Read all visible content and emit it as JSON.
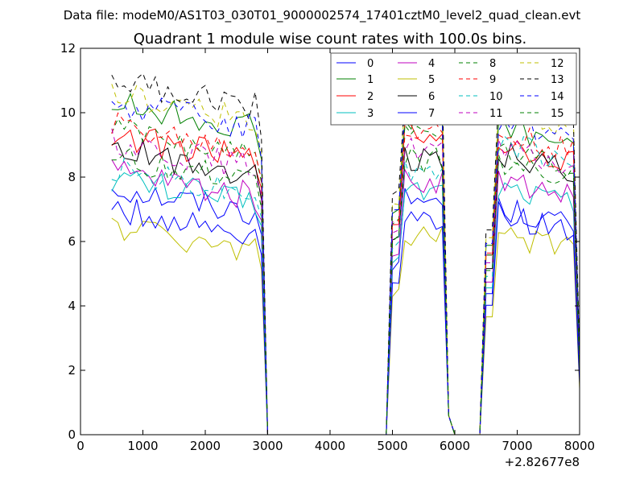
{
  "suptitle": "Data file: modeM0/AS1T03_030T01_9000002574_17401cztM0_level2_quad_clean.evt",
  "chart_data": {
    "type": "line",
    "title": "Quadrant 1 module wise count rates with 100.0s bins.",
    "xlabel": "",
    "ylabel": "",
    "x_offset_label": "+2.82677e8",
    "xlim": [
      0,
      8000
    ],
    "ylim": [
      0,
      12
    ],
    "xticks": [
      0,
      1000,
      2000,
      3000,
      4000,
      5000,
      6000,
      7000,
      8000
    ],
    "yticks": [
      0,
      2,
      4,
      6,
      8,
      10,
      12
    ],
    "grid": false,
    "legend_position": "top-right",
    "segment_breaks": [
      [
        2980,
        4980
      ],
      [
        5980,
        6480
      ]
    ],
    "series": [
      {
        "name": "0",
        "color": "#0000ff",
        "style": "solid",
        "base": 6.9,
        "mid": 7.3,
        "end": 6.5
      },
      {
        "name": "1",
        "color": "#008000",
        "style": "solid",
        "base": 9.5,
        "mid": 9.8,
        "end": 9.0
      },
      {
        "name": "2",
        "color": "#ff0000",
        "style": "solid",
        "base": 8.5,
        "mid": 9.3,
        "end": 8.5
      },
      {
        "name": "3",
        "color": "#00bfbf",
        "style": "solid",
        "base": 7.2,
        "mid": 7.6,
        "end": 7.2
      },
      {
        "name": "4",
        "color": "#bf00bf",
        "style": "solid",
        "base": 7.4,
        "mid": 7.9,
        "end": 7.4
      },
      {
        "name": "5",
        "color": "#bfbf00",
        "style": "solid",
        "base": 5.7,
        "mid": 6.1,
        "end": 5.7
      },
      {
        "name": "6",
        "color": "#000000",
        "style": "solid",
        "base": 8.1,
        "mid": 8.6,
        "end": 8.2
      },
      {
        "name": "7",
        "color": "#0000ff",
        "style": "solid",
        "base": 6.2,
        "mid": 6.7,
        "end": 6.3
      },
      {
        "name": "8",
        "color": "#008000",
        "style": "dashed",
        "base": 8.7,
        "mid": 9.3,
        "end": 8.2
      },
      {
        "name": "9",
        "color": "#ff0000",
        "style": "dashed",
        "base": 8.8,
        "mid": 9.4,
        "end": 8.8
      },
      {
        "name": "10",
        "color": "#00bfbf",
        "style": "dashed",
        "base": 7.5,
        "mid": 8.2,
        "end": 8.5
      },
      {
        "name": "11",
        "color": "#bf00bf",
        "style": "dashed",
        "base": 8.3,
        "mid": 8.9,
        "end": 8.3
      },
      {
        "name": "12",
        "color": "#bfbf00",
        "style": "dashed",
        "base": 9.8,
        "mid": 10.2,
        "end": 9.5
      },
      {
        "name": "13",
        "color": "#000000",
        "style": "dashed",
        "base": 10.2,
        "mid": 10.6,
        "end": 10.0
      },
      {
        "name": "14",
        "color": "#0000ff",
        "style": "dashed",
        "base": 9.5,
        "mid": 9.9,
        "end": 9.2
      },
      {
        "name": "15",
        "color": "#008000",
        "style": "dashed",
        "base": 7.8,
        "mid": 8.5,
        "end": 7.9
      }
    ]
  }
}
